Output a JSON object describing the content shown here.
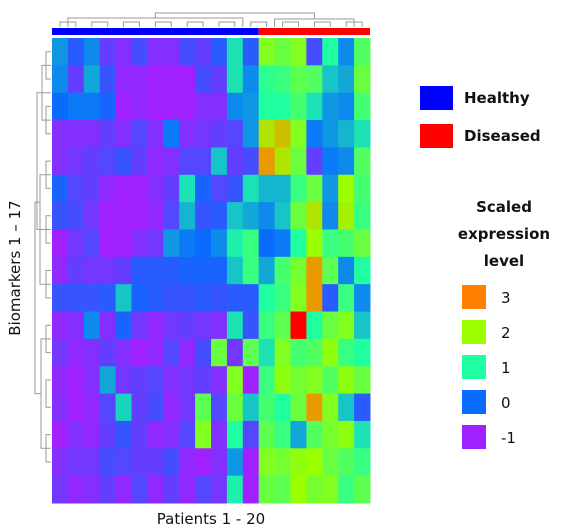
{
  "chart_data": {
    "type": "heatmap",
    "xlabel": "Patients 1 - 20",
    "ylabel": "Biomarkers 1 – 17",
    "n_cols": 20,
    "n_rows": 17,
    "groups": [
      {
        "name": "Healthy",
        "color": "#0000ff",
        "cols": [
          1,
          13
        ]
      },
      {
        "name": "Diseased",
        "color": "#ff0000",
        "cols": [
          14,
          20
        ]
      }
    ],
    "colorbar": {
      "title": [
        "Scaled",
        "expression",
        "level"
      ],
      "levels": [
        {
          "label": "3",
          "value": 3,
          "color": "#ff7f00"
        },
        {
          "label": "2",
          "value": 2,
          "color": "#9bff00"
        },
        {
          "label": "1",
          "value": 1,
          "color": "#1fffa0"
        },
        {
          "label": "0",
          "value": 0,
          "color": "#0a6bff"
        },
        {
          "label": "-1",
          "value": -1,
          "color": "#a020ff"
        }
      ]
    },
    "values": [
      [
        0.3,
        -0.2,
        0.2,
        -0.6,
        -0.8,
        -0.4,
        -0.8,
        -0.8,
        -0.4,
        -0.6,
        -0.2,
        0.8,
        -0.2,
        1.8,
        1.6,
        1.8,
        -0.4,
        1.0,
        0.2,
        1.4
      ],
      [
        0.2,
        -0.6,
        0.4,
        -0.3,
        -0.9,
        -0.9,
        -1.1,
        -1.1,
        -1.0,
        -0.4,
        -0.6,
        0.8,
        0.2,
        1.1,
        1.2,
        1.5,
        1.4,
        0.6,
        0.4,
        1.6
      ],
      [
        0.0,
        0.1,
        0.1,
        -0.1,
        -1.3,
        -0.9,
        -1.2,
        -1.3,
        -1.2,
        -0.8,
        -0.8,
        0.2,
        0.3,
        1.0,
        1.0,
        1.3,
        0.8,
        0.3,
        0.2,
        1.3
      ],
      [
        -0.8,
        -0.8,
        -0.8,
        -0.6,
        -0.8,
        -0.5,
        -0.8,
        0.1,
        -0.8,
        -0.7,
        -0.6,
        -0.5,
        0.3,
        2.2,
        2.5,
        1.8,
        0.1,
        0.3,
        0.5,
        0.8
      ],
      [
        -0.8,
        -0.7,
        -0.6,
        -0.5,
        -0.3,
        -0.6,
        -0.9,
        -0.8,
        -0.5,
        -0.5,
        0.6,
        -0.6,
        -0.4,
        2.8,
        2.2,
        1.6,
        -0.6,
        0.1,
        0.2,
        1.4
      ],
      [
        -0.1,
        -0.5,
        -0.6,
        -0.9,
        -1.2,
        -1.2,
        -0.8,
        -0.6,
        0.8,
        -0.1,
        -0.5,
        -0.3,
        0.8,
        0.5,
        0.5,
        1.2,
        1.6,
        0.3,
        2.0,
        1.3
      ],
      [
        -0.3,
        -0.4,
        -0.7,
        -1.0,
        -1.3,
        -1.2,
        -0.9,
        -0.5,
        0.5,
        -0.3,
        -0.2,
        0.6,
        0.4,
        0.2,
        0.6,
        1.6,
        2.2,
        0.2,
        2.1,
        1.2
      ],
      [
        -1.2,
        -0.7,
        -0.5,
        -1.1,
        -1.3,
        -0.8,
        -0.7,
        0.3,
        0.1,
        0.0,
        0.2,
        0.9,
        1.2,
        0.0,
        0.1,
        1.0,
        2.0,
        1.2,
        1.3,
        1.6
      ],
      [
        -0.9,
        -0.6,
        -0.7,
        -0.7,
        -0.6,
        -0.2,
        -0.2,
        -0.2,
        -0.1,
        -0.1,
        -0.1,
        0.6,
        1.2,
        0.4,
        1.3,
        1.7,
        2.8,
        1.5,
        0.2,
        1.0
      ],
      [
        -0.3,
        -0.3,
        -0.3,
        -0.2,
        0.6,
        -0.1,
        -0.2,
        -0.3,
        -0.3,
        -0.2,
        -0.3,
        -0.2,
        -0.2,
        1.0,
        1.2,
        1.8,
        2.8,
        -0.2,
        1.2,
        0.2
      ],
      [
        -0.9,
        -0.8,
        0.2,
        -0.8,
        -0.1,
        -0.7,
        -0.9,
        -0.7,
        -0.6,
        -0.7,
        -0.8,
        0.8,
        -0.3,
        1.2,
        1.5,
        4.0,
        1.0,
        1.6,
        1.8,
        0.6
      ],
      [
        -0.7,
        -0.9,
        -0.8,
        -0.6,
        -0.8,
        -1.0,
        -0.9,
        -0.5,
        -0.9,
        -0.4,
        1.6,
        -0.7,
        1.5,
        0.8,
        1.8,
        1.3,
        1.4,
        1.9,
        1.2,
        1.0
      ],
      [
        -0.9,
        -1.2,
        -0.8,
        0.4,
        -0.7,
        -0.6,
        -0.5,
        -0.8,
        -0.7,
        -0.6,
        -0.8,
        1.8,
        -1.3,
        1.2,
        1.9,
        1.7,
        1.8,
        1.4,
        1.9,
        1.6
      ],
      [
        -0.8,
        -1.3,
        -0.9,
        -0.5,
        0.7,
        -0.6,
        -0.4,
        -0.9,
        -0.7,
        1.5,
        -0.5,
        1.6,
        0.6,
        1.3,
        1.0,
        1.6,
        2.8,
        1.8,
        0.6,
        -0.2
      ],
      [
        -1.1,
        -0.8,
        -0.9,
        -0.6,
        -0.3,
        -0.6,
        -0.9,
        -0.8,
        -0.5,
        1.8,
        -0.8,
        1.0,
        -0.5,
        1.5,
        1.2,
        0.4,
        1.4,
        1.7,
        1.9,
        0.8
      ],
      [
        -0.8,
        -0.7,
        -0.7,
        -0.4,
        -0.5,
        -0.6,
        -0.6,
        -0.4,
        -0.9,
        -1.0,
        -0.8,
        0.3,
        -1.1,
        1.8,
        1.7,
        1.9,
        2.0,
        1.6,
        1.4,
        1.2
      ],
      [
        -0.7,
        -0.9,
        -0.8,
        -0.6,
        -0.9,
        -0.5,
        -0.9,
        -0.6,
        -0.9,
        -0.5,
        -0.7,
        0.9,
        -1.2,
        1.6,
        1.5,
        2.0,
        1.7,
        1.8,
        1.2,
        1.5
      ]
    ]
  }
}
